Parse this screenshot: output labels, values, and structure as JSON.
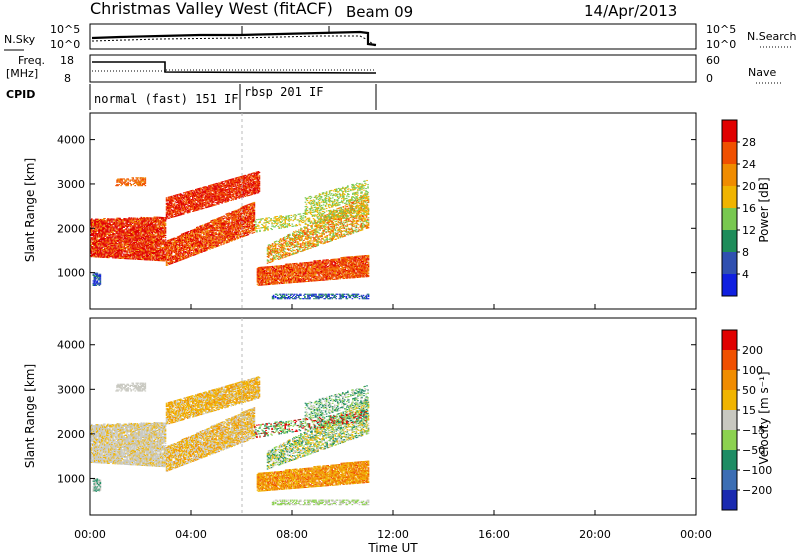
{
  "header": {
    "station": "Christmas Valley West (fitACF)",
    "beam": "Beam 09",
    "date": "14/Apr/2013"
  },
  "top_panels": {
    "nsky_label": "N.Sky",
    "nsky_ticks": [
      "10^5",
      "10^0"
    ],
    "nsearch_label": "N.Search",
    "freq_label_1": "Freq.",
    "freq_label_2": "[MHz]",
    "freq_ticks": [
      "18",
      "8"
    ],
    "nave_label": "Nave",
    "nave_ticks": [
      "60",
      "0"
    ],
    "cpid_label": "CPID",
    "cpid_segments": [
      "normal (fast) 151 IF",
      "rbsp 201 IF"
    ]
  },
  "chart_data": [
    {
      "type": "heatmap",
      "name": "power",
      "ylabel": "Slant Range [km]",
      "yticks": [
        "1000",
        "2000",
        "3000",
        "4000"
      ],
      "colorbar_label": "Power [dB]",
      "colorbar_ticks": [
        "4",
        "8",
        "12",
        "16",
        "20",
        "24",
        "28"
      ],
      "colors": [
        "#1020e0",
        "#3050b0",
        "#1e8c5a",
        "#78c850",
        "#f0b400",
        "#f08c00",
        "#f05000",
        "#e00000"
      ]
    },
    {
      "type": "heatmap",
      "name": "velocity",
      "ylabel": "Slant Range [km]",
      "yticks": [
        "1000",
        "2000",
        "3000",
        "4000"
      ],
      "colorbar_label": "Velocity [m s⁻¹]",
      "colorbar_ticks": [
        "200",
        "100",
        "50",
        "15",
        "−15",
        "−50",
        "−100",
        "−200"
      ],
      "colors": [
        "#1a2ab0",
        "#3c6eb4",
        "#1e8c64",
        "#8cd250",
        "#c8c8c0",
        "#f0b400",
        "#f08c00",
        "#f05000",
        "#e00000"
      ]
    }
  ],
  "time_axis": {
    "label": "Time UT",
    "ticks": [
      "00:00",
      "04:00",
      "08:00",
      "12:00",
      "16:00",
      "20:00",
      "00:00"
    ]
  }
}
